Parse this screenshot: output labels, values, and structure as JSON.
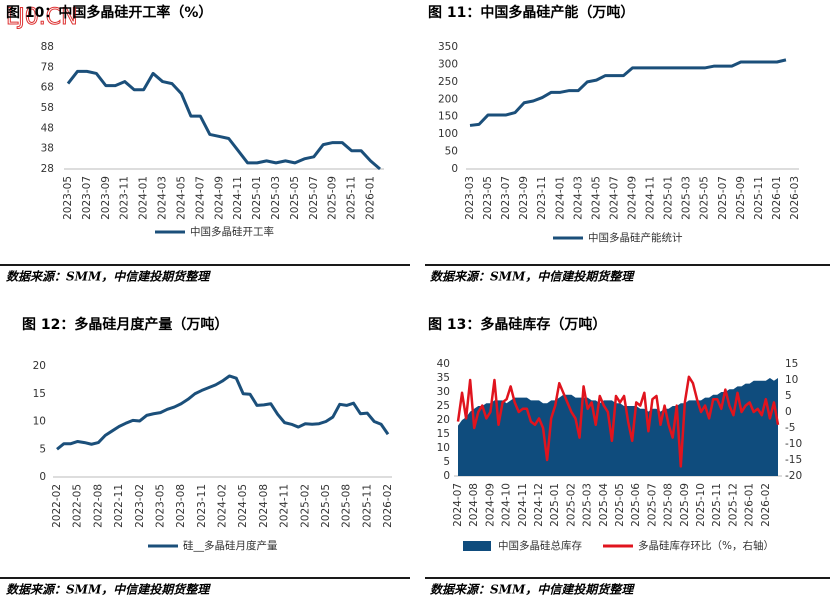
{
  "watermark": "LJ0.CN",
  "chart_data": [
    {
      "type": "line",
      "title": "图 10：中国多晶硅开工率（%）",
      "source": "数据来源：SMM，中信建投期货整理",
      "categories": [
        "2023-05",
        null,
        "2023-07",
        null,
        "2023-09",
        null,
        "2023-11",
        null,
        "2024-01",
        null,
        "2024-03",
        null,
        "2024-05",
        null,
        "2024-07",
        null,
        "2024-09",
        null,
        "2024-11",
        null,
        "2025-01",
        null,
        "2025-03",
        null,
        "2025-05",
        null,
        "2025-07",
        null,
        "2025-09",
        null,
        "2025-11",
        null,
        "2026-01",
        null
      ],
      "series": [
        {
          "name": "中国多晶硅开工率",
          "color": "#1b4f7a",
          "values": [
            70,
            76,
            76,
            75,
            69,
            69,
            71,
            67,
            67,
            75,
            71,
            70,
            65,
            54,
            54,
            45,
            44,
            43,
            37,
            31,
            31,
            32,
            31,
            32,
            31,
            33,
            34,
            40,
            41,
            41,
            37,
            37,
            32,
            28
          ]
        }
      ],
      "ylim": [
        28,
        88
      ],
      "yticks": [
        28,
        38,
        48,
        58,
        68,
        78,
        88
      ]
    },
    {
      "type": "line",
      "title": "图 11：中国多晶硅产能（万吨）",
      "source": "数据来源：SMM，中信建投期货整理",
      "categories": [
        "2023-03",
        null,
        "2023-05",
        null,
        "2023-07",
        null,
        "2023-09",
        null,
        "2023-11",
        null,
        "2024-01",
        null,
        "2024-03",
        null,
        "2024-05",
        null,
        "2024-07",
        null,
        "2024-09",
        null,
        "2024-11",
        null,
        "2025-01",
        null,
        "2025-03",
        null,
        "2025-05",
        null,
        "2025-07",
        null,
        "2025-09",
        null,
        "2025-11",
        null,
        "2026-01",
        null,
        "2026-03"
      ],
      "series": [
        {
          "name": "中国多晶硅产能统计",
          "color": "#1b4f7a",
          "values": [
            125,
            128,
            155,
            155,
            155,
            162,
            190,
            195,
            205,
            220,
            220,
            225,
            225,
            250,
            255,
            268,
            268,
            268,
            290,
            290,
            290,
            290,
            290,
            290,
            290,
            290,
            290,
            295,
            295,
            295,
            307,
            307,
            307,
            307,
            307,
            313,
            null
          ]
        }
      ],
      "ylim": [
        0,
        350
      ],
      "yticks": [
        0,
        50,
        100,
        150,
        200,
        250,
        300,
        350
      ]
    },
    {
      "type": "line",
      "title": "图 12：多晶硅月度产量（万吨）",
      "source": "数据来源：SMM，中信建投期货整理",
      "categories": [
        "2022-02",
        null,
        null,
        "2022-05",
        null,
        null,
        "2022-08",
        null,
        null,
        "2022-11",
        null,
        null,
        "2023-02",
        null,
        null,
        "2023-05",
        null,
        null,
        "2023-08",
        null,
        null,
        "2023-11",
        null,
        null,
        "2024-02",
        null,
        null,
        "2024-05",
        null,
        null,
        "2024-08",
        null,
        null,
        "2024-11",
        null,
        null,
        "2025-02",
        null,
        null,
        "2025-05",
        null,
        null,
        "2025-08",
        null,
        null,
        "2025-11",
        null,
        null,
        "2026-02"
      ],
      "series": [
        {
          "name": "硅__多晶硅月度产量",
          "color": "#1b4f7a",
          "values": [
            5.0,
            6.0,
            6.0,
            6.4,
            6.2,
            5.9,
            6.2,
            7.5,
            8.3,
            9.1,
            9.7,
            10.2,
            10.1,
            11.1,
            11.4,
            11.6,
            12.2,
            12.6,
            13.2,
            14.0,
            15.0,
            15.6,
            16.1,
            16.6,
            17.3,
            18.2,
            17.8,
            15.0,
            14.9,
            12.9,
            13.0,
            13.2,
            11.3,
            9.8,
            9.5,
            9.0,
            9.6,
            9.5,
            9.6,
            10.0,
            10.8,
            13.1,
            12.9,
            13.3,
            11.4,
            11.5,
            10.0,
            9.5,
            7.7
          ]
        }
      ],
      "ylim": [
        0,
        20
      ],
      "yticks": [
        0,
        5,
        10,
        15,
        20
      ]
    },
    {
      "type": "combo",
      "title": "图 13：多晶硅库存（万吨）",
      "source": "数据来源：SMM，中信建投期货整理",
      "categories": [
        "2024-07",
        null,
        null,
        null,
        "2024-08",
        null,
        null,
        null,
        "2024-09",
        null,
        null,
        null,
        "2024-10",
        null,
        null,
        null,
        "2024-11",
        null,
        null,
        null,
        "2024-12",
        null,
        null,
        null,
        "2025-01",
        null,
        null,
        null,
        "2025-02",
        null,
        null,
        null,
        "2025-03",
        null,
        null,
        null,
        "2025-04",
        null,
        null,
        null,
        "2025-05",
        null,
        null,
        null,
        "2025-06",
        null,
        null,
        null,
        "2025-07",
        null,
        null,
        null,
        "2025-08",
        null,
        null,
        null,
        "2025-09",
        null,
        null,
        null,
        "2025-10",
        null,
        null,
        null,
        "2025-11",
        null,
        null,
        null,
        "2025-12",
        null,
        null,
        null,
        "2026-01",
        null,
        null,
        null,
        "2026-02",
        null,
        null,
        null
      ],
      "series": [
        {
          "name": "中国多晶硅总库存",
          "color": "#0f4c7d",
          "kind": "area",
          "values": [
            18,
            20,
            21,
            23,
            24,
            25,
            25,
            26,
            26,
            27,
            27,
            27,
            26,
            27,
            28,
            28,
            28,
            28,
            27,
            27,
            27,
            26,
            26,
            27,
            27,
            28,
            29,
            29,
            29,
            28,
            28,
            28,
            28,
            27,
            27,
            26,
            27,
            27,
            27,
            26,
            26,
            25,
            25,
            25,
            25,
            24,
            24,
            23,
            24,
            24,
            23,
            24,
            24,
            25,
            25,
            26,
            26,
            27,
            27,
            27,
            27,
            28,
            28,
            29,
            29,
            30,
            30,
            31,
            31,
            32,
            32,
            33,
            33,
            34,
            34,
            34,
            34,
            35,
            34,
            35
          ]
        },
        {
          "name": "多晶硅库存环比（%，右轴）",
          "color": "#e0141e",
          "axis": "y2",
          "values": [
            -3,
            6,
            -2,
            10,
            -5,
            0,
            2,
            -2,
            0,
            10,
            -4,
            3,
            4,
            8,
            3,
            0,
            1,
            1,
            -3,
            -4,
            -2,
            -5,
            -15,
            -2,
            2,
            9,
            6,
            3,
            0,
            -2,
            -8,
            8,
            1,
            3,
            -4,
            5,
            2,
            0,
            -9,
            5,
            3,
            5,
            -3,
            -9,
            3,
            2,
            6,
            -6,
            4,
            5,
            -4,
            2,
            -4,
            -8,
            2,
            -17,
            3,
            11,
            9,
            4,
            0,
            2,
            -2,
            4,
            4,
            1,
            7,
            2,
            -1,
            6,
            0,
            2,
            3,
            0,
            1,
            -1,
            4,
            -2,
            3,
            -4
          ]
        }
      ],
      "ylim": [
        0,
        40
      ],
      "yticks": [
        0,
        5,
        10,
        15,
        20,
        25,
        30,
        35,
        40
      ],
      "y2lim": [
        -20,
        15
      ],
      "y2ticks": [
        -20,
        -15,
        -10,
        -5,
        0,
        5,
        10,
        15
      ]
    }
  ]
}
